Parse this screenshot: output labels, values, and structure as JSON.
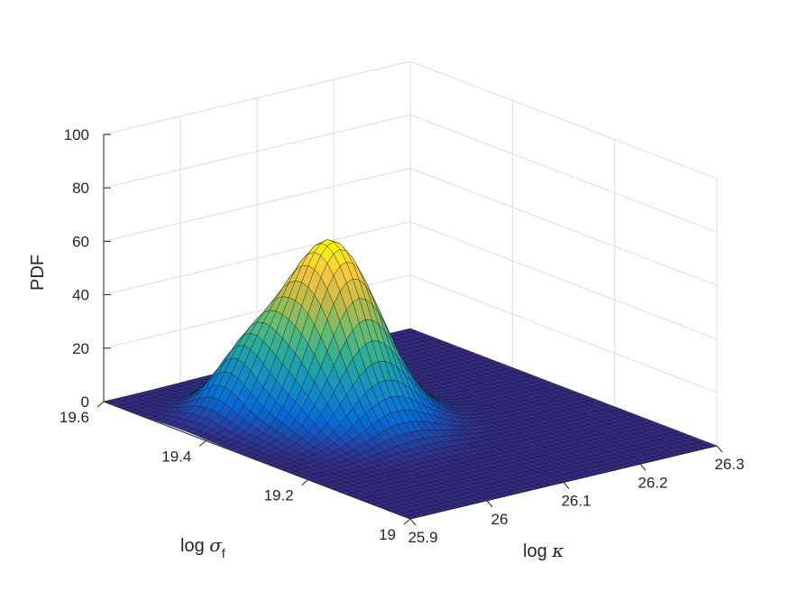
{
  "chart_data": {
    "type": "surface",
    "title": "",
    "xlabel": {
      "prefix": "log ",
      "symbol": "κ"
    },
    "ylabel": {
      "prefix": "log ",
      "symbol": "σ",
      "subscript": "f"
    },
    "zlabel": "PDF",
    "xlim": [
      25.9,
      26.3
    ],
    "ylim": [
      19.0,
      19.6
    ],
    "zlim": [
      0,
      100
    ],
    "xticks": [
      "25.9",
      "26",
      "26.1",
      "26.2",
      "26.3"
    ],
    "yticks": [
      "19",
      "19.2",
      "19.4",
      "19.6"
    ],
    "zticks": [
      "0",
      "20",
      "40",
      "60",
      "80",
      "100"
    ],
    "colormap": "parula",
    "grid": true,
    "surface": {
      "description_of_peaks": "mixture of two gaussian bumps in (log kappa, log sigma_f)",
      "peaks": [
        {
          "x_center": 26.05,
          "y_center": 19.38,
          "height": 66
        },
        {
          "x_center": 25.98,
          "y_center": 19.45,
          "height": 17
        }
      ]
    }
  }
}
